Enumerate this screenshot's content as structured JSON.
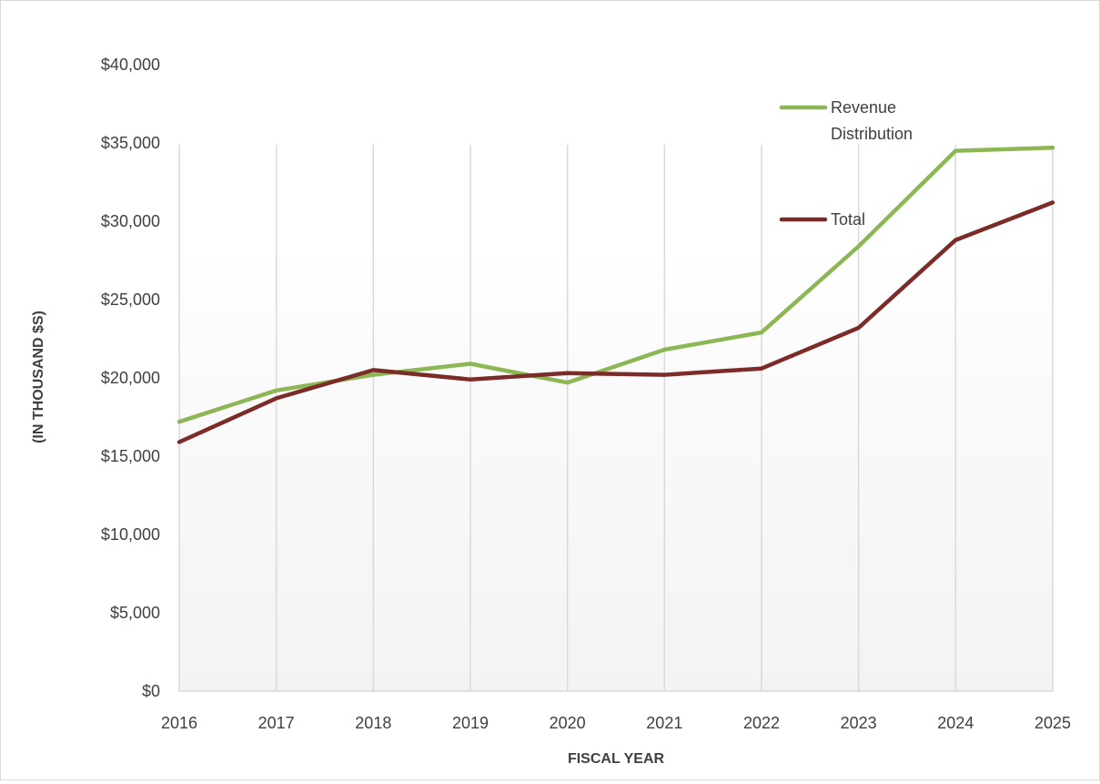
{
  "chart_data": {
    "type": "line",
    "title": "",
    "xlabel": "FISCAL YEAR",
    "ylabel": "(IN THOUSAND $S)",
    "categories": [
      "2016",
      "2017",
      "2018",
      "2019",
      "2020",
      "2021",
      "2022",
      "2023",
      "2024",
      "2025"
    ],
    "ylim": [
      0,
      40000
    ],
    "yticks": [
      0,
      5000,
      10000,
      15000,
      20000,
      25000,
      30000,
      35000,
      40000
    ],
    "ytick_labels": [
      "$0",
      "$5,000",
      "$10,000",
      "$15,000",
      "$20,000",
      "$25,000",
      "$30,000",
      "$35,000",
      "$40,000"
    ],
    "grid": "vertical",
    "legend_position": "top-right",
    "series": [
      {
        "name": "Revenue Distribution",
        "legend_lines": [
          "Revenue",
          "Distribution"
        ],
        "color": "#8db654",
        "values": [
          17200,
          19200,
          20200,
          20900,
          19700,
          21800,
          22900,
          28400,
          34500,
          34700
        ]
      },
      {
        "name": "Total",
        "legend_lines": [
          "Total"
        ],
        "color": "#7b2b28",
        "values": [
          15900,
          18700,
          20500,
          19900,
          20300,
          20200,
          20600,
          23200,
          28800,
          31200
        ]
      }
    ]
  }
}
